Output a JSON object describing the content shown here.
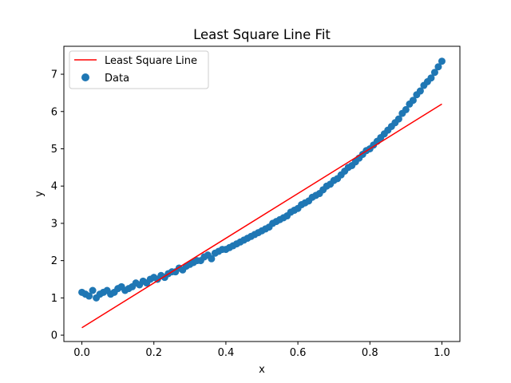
{
  "chart_data": {
    "type": "scatter",
    "title": "Least Square Line Fit",
    "xlabel": "x",
    "ylabel": "y",
    "xlim": [
      -0.05,
      1.05
    ],
    "ylim": [
      -0.17,
      7.75
    ],
    "xticks": [
      0.0,
      0.2,
      0.4,
      0.6,
      0.8,
      1.0
    ],
    "xtick_labels": [
      "0.0",
      "0.2",
      "0.4",
      "0.6",
      "0.8",
      "1.0"
    ],
    "yticks": [
      0,
      1,
      2,
      3,
      4,
      5,
      6,
      7
    ],
    "ytick_labels": [
      "0",
      "1",
      "2",
      "3",
      "4",
      "5",
      "6",
      "7"
    ],
    "grid": false,
    "legend_position": "upper-left",
    "legend": {
      "line_label": "Least Square Line",
      "scatter_label": "Data"
    },
    "series": [
      {
        "name": "Least Square Line",
        "kind": "line",
        "color": "#ff0000",
        "x": [
          0.0,
          1.0
        ],
        "y": [
          0.2,
          6.2
        ]
      },
      {
        "name": "Data",
        "kind": "scatter",
        "color": "#1f77b4",
        "x": [
          0.0,
          0.01,
          0.02,
          0.03,
          0.04,
          0.05,
          0.06,
          0.07,
          0.08,
          0.09,
          0.1,
          0.11,
          0.12,
          0.13,
          0.14,
          0.15,
          0.16,
          0.17,
          0.18,
          0.19,
          0.2,
          0.21,
          0.22,
          0.23,
          0.24,
          0.25,
          0.26,
          0.27,
          0.28,
          0.29,
          0.3,
          0.31,
          0.32,
          0.33,
          0.34,
          0.35,
          0.36,
          0.37,
          0.38,
          0.39,
          0.4,
          0.41,
          0.42,
          0.43,
          0.44,
          0.45,
          0.46,
          0.47,
          0.48,
          0.49,
          0.5,
          0.51,
          0.52,
          0.53,
          0.54,
          0.55,
          0.56,
          0.57,
          0.58,
          0.59,
          0.6,
          0.61,
          0.62,
          0.63,
          0.64,
          0.65,
          0.66,
          0.67,
          0.68,
          0.69,
          0.7,
          0.71,
          0.72,
          0.73,
          0.74,
          0.75,
          0.76,
          0.77,
          0.78,
          0.79,
          0.8,
          0.81,
          0.82,
          0.83,
          0.84,
          0.85,
          0.86,
          0.87,
          0.88,
          0.89,
          0.9,
          0.91,
          0.92,
          0.93,
          0.94,
          0.95,
          0.96,
          0.97,
          0.98,
          0.99,
          1.0
        ],
        "y": [
          1.15,
          1.1,
          1.05,
          1.2,
          1.0,
          1.1,
          1.15,
          1.2,
          1.1,
          1.15,
          1.25,
          1.3,
          1.2,
          1.25,
          1.3,
          1.4,
          1.35,
          1.45,
          1.4,
          1.5,
          1.55,
          1.5,
          1.6,
          1.55,
          1.65,
          1.7,
          1.7,
          1.8,
          1.75,
          1.85,
          1.9,
          1.95,
          2.0,
          2.0,
          2.1,
          2.15,
          2.05,
          2.2,
          2.25,
          2.3,
          2.3,
          2.35,
          2.4,
          2.45,
          2.5,
          2.55,
          2.6,
          2.65,
          2.7,
          2.75,
          2.8,
          2.85,
          2.9,
          3.0,
          3.05,
          3.1,
          3.15,
          3.2,
          3.3,
          3.35,
          3.4,
          3.5,
          3.55,
          3.6,
          3.7,
          3.75,
          3.8,
          3.9,
          4.0,
          4.05,
          4.15,
          4.2,
          4.3,
          4.4,
          4.5,
          4.55,
          4.65,
          4.75,
          4.85,
          4.95,
          5.0,
          5.1,
          5.2,
          5.3,
          5.4,
          5.5,
          5.6,
          5.7,
          5.8,
          5.95,
          6.05,
          6.2,
          6.3,
          6.45,
          6.55,
          6.7,
          6.8,
          6.9,
          7.05,
          7.2,
          7.35
        ]
      }
    ]
  }
}
